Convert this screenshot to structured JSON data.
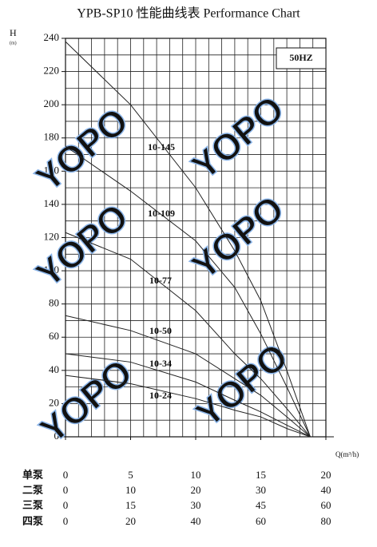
{
  "chart_data": {
    "type": "line",
    "title": "YPB-SP10 性能曲线表 Performance Chart",
    "y_label": "H",
    "y_unit": "(m)",
    "x_label": "Q(m³/h)",
    "frequency": "50HZ",
    "watermark": "YOPO",
    "xlim": [
      0,
      20
    ],
    "ylim": [
      0,
      240
    ],
    "xticks": [
      0,
      5,
      10,
      15,
      20
    ],
    "yticks": [
      0,
      20,
      40,
      60,
      80,
      100,
      120,
      140,
      160,
      180,
      200,
      220,
      240
    ],
    "grid": true,
    "minor_grid": {
      "x": 1,
      "y": 10
    },
    "xtick_row_name": "单泵",
    "xtick_rows": [
      {
        "name": "二泵",
        "labels": [
          0,
          10,
          20,
          30,
          40
        ]
      },
      {
        "name": "三泵",
        "labels": [
          0,
          15,
          30,
          45,
          60
        ]
      },
      {
        "name": "四泵",
        "labels": [
          0,
          20,
          40,
          60,
          80
        ]
      }
    ],
    "x": [
      0,
      5,
      10,
      13,
      15,
      17,
      18.8
    ],
    "series": [
      {
        "name": "10-145",
        "color": "#222",
        "values": [
          238,
          200,
          150,
          112,
          82,
          40,
          0
        ]
      },
      {
        "name": "10-109",
        "color": "#222",
        "values": [
          175,
          148,
          118,
          90,
          62,
          30,
          0
        ]
      },
      {
        "name": "10-77",
        "color": "#222",
        "values": [
          123,
          107,
          76,
          50,
          35,
          17,
          0
        ]
      },
      {
        "name": "10-50",
        "color": "#222",
        "values": [
          73,
          64,
          50,
          35,
          25,
          12,
          0
        ]
      },
      {
        "name": "10-34",
        "color": "#222",
        "values": [
          50,
          45,
          33,
          22,
          15,
          7,
          0
        ]
      },
      {
        "name": "10-24",
        "color": "#222",
        "values": [
          37,
          32,
          23,
          16,
          12,
          5,
          0
        ]
      }
    ]
  }
}
